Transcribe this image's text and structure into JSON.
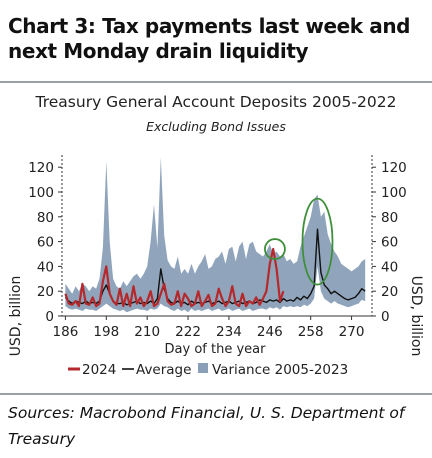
{
  "heading": "Chart 3: Tax payments last week and next Monday drain liquidity",
  "source": "Sources: Macrobond Financial, U. S. Department of Treasury",
  "colors": {
    "series_2024": "#b5292c",
    "series_average": "#111111",
    "series_variance": "#8aa0b8",
    "highlight": "#3f8f3a",
    "rule": "#9aa0a6"
  },
  "chart_data": {
    "type": "line",
    "title": "Treasury General Account Deposits 2005-2022",
    "subtitle": "Excluding Bond Issues",
    "xlabel": "Day of the year",
    "ylabel_left": "USD, billion",
    "ylabel_right": "USD, billion",
    "xlim": [
      185,
      276
    ],
    "ylim": [
      0,
      125
    ],
    "x_ticks": [
      186,
      198,
      210,
      222,
      234,
      246,
      258,
      270
    ],
    "y_ticks": [
      0,
      20,
      40,
      60,
      80,
      100,
      120
    ],
    "grid": false,
    "legend_position": "bottom",
    "legend": [
      "2024",
      "Average",
      "Variance 2005-2023"
    ],
    "annotations": [
      {
        "type": "circle",
        "x": 247.5,
        "y": 54,
        "note": "2024 peak highlighted"
      },
      {
        "type": "ellipse",
        "x": 260,
        "y": 60,
        "note": "average peak highlighted"
      }
    ],
    "series": [
      {
        "name": "Average",
        "type": "line",
        "x": [
          186,
          187,
          188,
          189,
          190,
          191,
          192,
          193,
          194,
          195,
          196,
          197,
          198,
          199,
          200,
          201,
          202,
          203,
          204,
          205,
          206,
          207,
          208,
          209,
          210,
          211,
          212,
          213,
          214,
          215,
          216,
          217,
          218,
          219,
          220,
          221,
          222,
          223,
          224,
          225,
          226,
          227,
          228,
          229,
          230,
          231,
          232,
          233,
          234,
          235,
          236,
          237,
          238,
          239,
          240,
          241,
          242,
          243,
          244,
          245,
          246,
          247,
          248,
          249,
          250,
          251,
          252,
          253,
          254,
          255,
          256,
          257,
          258,
          259,
          260,
          261,
          262,
          263,
          264,
          265,
          266,
          267,
          268,
          269,
          270,
          271,
          272,
          273,
          274
        ],
        "y": [
          15,
          12,
          10,
          12,
          11,
          10,
          12,
          10,
          11,
          10,
          12,
          20,
          25,
          18,
          12,
          10,
          10,
          11,
          9,
          10,
          11,
          12,
          10,
          11,
          10,
          12,
          10,
          14,
          38,
          22,
          14,
          11,
          10,
          12,
          10,
          11,
          9,
          12,
          10,
          11,
          10,
          11,
          12,
          10,
          11,
          12,
          10,
          11,
          12,
          10,
          11,
          12,
          10,
          11,
          12,
          10,
          11,
          13,
          12,
          11,
          13,
          12,
          13,
          11,
          14,
          12,
          13,
          12,
          15,
          13,
          16,
          14,
          18,
          24,
          70,
          35,
          25,
          22,
          18,
          20,
          18,
          16,
          14,
          13,
          14,
          15,
          18,
          22,
          20
        ]
      },
      {
        "name": "2024",
        "type": "line",
        "x": [
          186,
          187,
          188,
          189,
          190,
          191,
          192,
          193,
          194,
          195,
          196,
          197,
          198,
          199,
          200,
          201,
          202,
          203,
          204,
          205,
          206,
          207,
          208,
          209,
          210,
          211,
          212,
          213,
          214,
          215,
          216,
          217,
          218,
          219,
          220,
          221,
          222,
          223,
          224,
          225,
          226,
          227,
          228,
          229,
          230,
          231,
          232,
          233,
          234,
          235,
          236,
          237,
          238,
          239,
          240,
          241,
          242,
          243,
          244,
          245,
          246,
          247,
          248,
          249,
          250
        ],
        "y": [
          18,
          10,
          9,
          12,
          8,
          26,
          10,
          9,
          15,
          8,
          10,
          28,
          40,
          18,
          12,
          9,
          22,
          8,
          18,
          8,
          24,
          10,
          15,
          8,
          12,
          20,
          8,
          10,
          18,
          26,
          12,
          9,
          10,
          20,
          8,
          18,
          14,
          8,
          10,
          20,
          8,
          12,
          17,
          8,
          10,
          22,
          14,
          8,
          12,
          24,
          10,
          8,
          18,
          8,
          12,
          10,
          15,
          9,
          14,
          20,
          42,
          54,
          38,
          12,
          20
        ]
      },
      {
        "name": "Variance 2005-2023",
        "type": "band",
        "x": [
          186,
          187,
          188,
          189,
          190,
          191,
          192,
          193,
          194,
          195,
          196,
          197,
          198,
          199,
          200,
          201,
          202,
          203,
          204,
          205,
          206,
          207,
          208,
          209,
          210,
          211,
          212,
          213,
          214,
          215,
          216,
          217,
          218,
          219,
          220,
          221,
          222,
          223,
          224,
          225,
          226,
          227,
          228,
          229,
          230,
          231,
          232,
          233,
          234,
          235,
          236,
          237,
          238,
          239,
          240,
          241,
          242,
          243,
          244,
          245,
          246,
          247,
          248,
          249,
          250,
          251,
          252,
          253,
          254,
          255,
          256,
          257,
          258,
          259,
          260,
          261,
          262,
          263,
          264,
          265,
          266,
          267,
          268,
          269,
          270,
          271,
          272,
          273,
          274
        ],
        "low": [
          8,
          6,
          5,
          6,
          5,
          4,
          6,
          5,
          5,
          4,
          6,
          8,
          10,
          8,
          6,
          5,
          4,
          5,
          3,
          4,
          5,
          6,
          5,
          5,
          4,
          6,
          5,
          6,
          10,
          8,
          7,
          5,
          4,
          6,
          4,
          5,
          3,
          6,
          4,
          5,
          4,
          5,
          6,
          4,
          5,
          6,
          4,
          5,
          6,
          4,
          5,
          6,
          4,
          5,
          6,
          4,
          5,
          6,
          6,
          5,
          7,
          6,
          7,
          5,
          8,
          7,
          8,
          7,
          8,
          7,
          9,
          8,
          10,
          14,
          40,
          20,
          14,
          12,
          10,
          12,
          10,
          9,
          8,
          7,
          8,
          9,
          10,
          13,
          12
        ],
        "high": [
          26,
          22,
          18,
          24,
          20,
          26,
          24,
          20,
          24,
          22,
          30,
          55,
          125,
          60,
          30,
          24,
          22,
          28,
          24,
          28,
          32,
          34,
          30,
          34,
          40,
          60,
          90,
          55,
          128,
          65,
          45,
          40,
          38,
          48,
          34,
          38,
          34,
          42,
          34,
          40,
          44,
          50,
          38,
          40,
          46,
          48,
          52,
          42,
          54,
          56,
          44,
          56,
          60,
          46,
          58,
          60,
          52,
          50,
          48,
          52,
          58,
          50,
          52,
          48,
          50,
          44,
          46,
          42,
          44,
          56,
          64,
          72,
          80,
          94,
          98,
          80,
          84,
          66,
          58,
          52,
          48,
          42,
          40,
          38,
          36,
          38,
          40,
          44,
          46
        ]
      }
    ]
  }
}
